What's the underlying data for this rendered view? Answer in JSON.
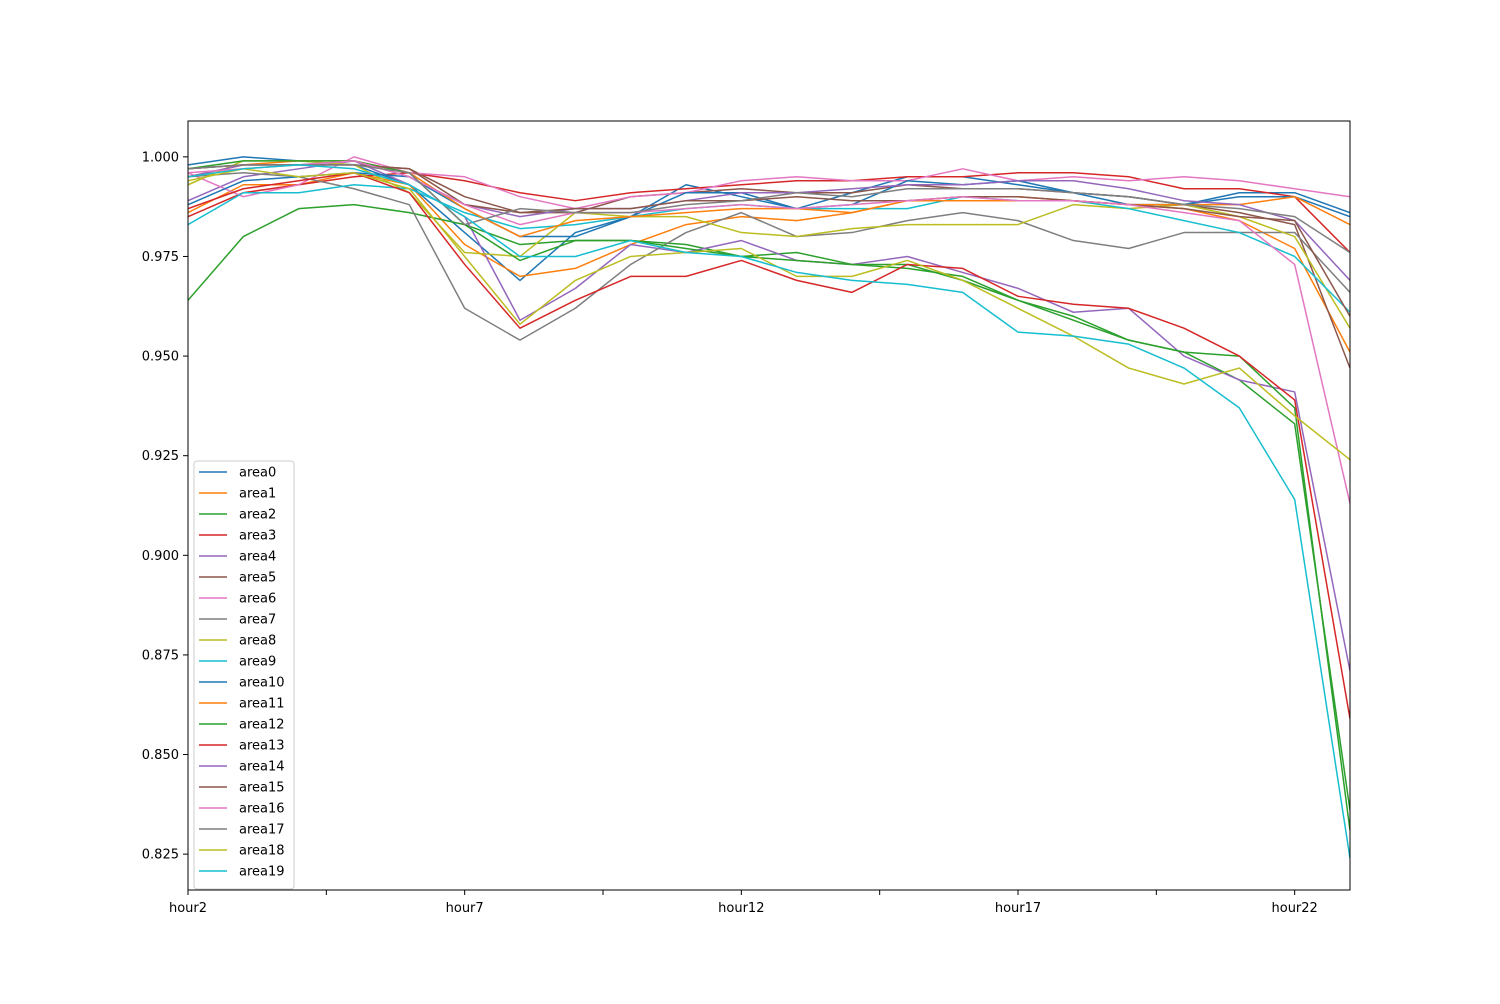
{
  "chart_data": {
    "type": "line",
    "title": "",
    "xlabel": "",
    "ylabel": "",
    "categories": [
      "hour2",
      "hour3",
      "hour4",
      "hour5",
      "hour6",
      "hour7",
      "hour8",
      "hour9",
      "hour10",
      "hour11",
      "hour12",
      "hour13",
      "hour14",
      "hour15",
      "hour16",
      "hour17",
      "hour18",
      "hour19",
      "hour20",
      "hour21",
      "hour22",
      "hour23"
    ],
    "x_tick_labels": [
      "hour2",
      "",
      "hour7",
      "",
      "hour12",
      "",
      "hour17",
      "",
      "hour22"
    ],
    "x_tick_indices": [
      0,
      2.5,
      5,
      7.5,
      10,
      12.5,
      15,
      17.5,
      20
    ],
    "ylim": [
      0.816,
      1.009
    ],
    "yticks": [
      0.825,
      0.85,
      0.875,
      0.9,
      0.925,
      0.95,
      0.975,
      1.0
    ],
    "ytick_labels": [
      "0.825",
      "0.850",
      "0.875",
      "0.900",
      "0.925",
      "0.950",
      "0.975",
      "1.000"
    ],
    "grid": false,
    "legend_position": "lower-left",
    "series": [
      {
        "name": "area0",
        "color": "#1f77b4",
        "values": [
          0.998,
          1.0,
          0.999,
          0.998,
          0.993,
          0.981,
          0.969,
          0.981,
          0.985,
          0.993,
          0.99,
          0.987,
          0.991,
          0.995,
          0.995,
          0.993,
          0.991,
          0.99,
          0.988,
          0.991,
          0.991,
          0.986
        ]
      },
      {
        "name": "area1",
        "color": "#ff7f0e",
        "values": [
          0.986,
          0.993,
          0.993,
          0.996,
          0.993,
          0.978,
          0.97,
          0.972,
          0.978,
          0.983,
          0.985,
          0.984,
          0.986,
          0.989,
          0.99,
          0.99,
          0.989,
          0.988,
          0.987,
          0.984,
          0.977,
          0.951
        ]
      },
      {
        "name": "area2",
        "color": "#2ca02c",
        "values": [
          0.964,
          0.98,
          0.987,
          0.988,
          0.986,
          0.983,
          0.978,
          0.979,
          0.979,
          0.978,
          0.975,
          0.976,
          0.973,
          0.972,
          0.97,
          0.964,
          0.959,
          0.954,
          0.951,
          0.944,
          0.933,
          0.836
        ]
      },
      {
        "name": "area3",
        "color": "#d62728",
        "values": [
          0.985,
          0.991,
          0.993,
          0.995,
          0.996,
          0.994,
          0.991,
          0.989,
          0.991,
          0.992,
          0.993,
          0.994,
          0.994,
          0.995,
          0.995,
          0.996,
          0.996,
          0.995,
          0.992,
          0.992,
          0.99,
          0.976
        ]
      },
      {
        "name": "area4",
        "color": "#9467bd",
        "values": [
          0.989,
          0.995,
          0.997,
          0.999,
          0.993,
          0.985,
          0.959,
          0.967,
          0.978,
          0.976,
          0.979,
          0.974,
          0.973,
          0.975,
          0.971,
          0.967,
          0.961,
          0.962,
          0.95,
          0.944,
          0.941,
          0.871
        ]
      },
      {
        "name": "area5",
        "color": "#8c564b",
        "values": [
          0.997,
          0.998,
          0.998,
          0.998,
          0.997,
          0.99,
          0.986,
          0.986,
          0.99,
          0.991,
          0.992,
          0.991,
          0.991,
          0.993,
          0.992,
          0.992,
          0.991,
          0.99,
          0.988,
          0.986,
          0.983,
          0.947
        ]
      },
      {
        "name": "area6",
        "color": "#e377c2",
        "values": [
          0.996,
          0.99,
          0.993,
          1.0,
          0.996,
          0.995,
          0.99,
          0.987,
          0.99,
          0.991,
          0.994,
          0.995,
          0.994,
          0.994,
          0.997,
          0.994,
          0.995,
          0.994,
          0.995,
          0.994,
          0.992,
          0.99
        ]
      },
      {
        "name": "area7",
        "color": "#7f7f7f",
        "values": [
          0.995,
          0.996,
          0.995,
          0.992,
          0.988,
          0.962,
          0.954,
          0.962,
          0.973,
          0.981,
          0.986,
          0.98,
          0.981,
          0.984,
          0.986,
          0.984,
          0.979,
          0.977,
          0.981,
          0.981,
          0.981,
          0.966
        ]
      },
      {
        "name": "area8",
        "color": "#bcbd22",
        "values": [
          0.993,
          0.999,
          0.999,
          0.998,
          0.991,
          0.976,
          0.975,
          0.986,
          0.985,
          0.985,
          0.981,
          0.98,
          0.982,
          0.983,
          0.983,
          0.983,
          0.988,
          0.987,
          0.988,
          0.985,
          0.98,
          0.957
        ]
      },
      {
        "name": "area9",
        "color": "#17becf",
        "values": [
          0.983,
          0.991,
          0.991,
          0.993,
          0.992,
          0.986,
          0.982,
          0.983,
          0.985,
          0.987,
          0.988,
          0.987,
          0.987,
          0.987,
          0.99,
          0.989,
          0.989,
          0.987,
          0.984,
          0.981,
          0.975,
          0.961
        ]
      },
      {
        "name": "area10",
        "color": "#1f77b4",
        "values": [
          0.988,
          0.994,
          0.995,
          0.996,
          0.995,
          0.987,
          0.98,
          0.98,
          0.985,
          0.991,
          0.991,
          0.987,
          0.988,
          0.994,
          0.993,
          0.994,
          0.991,
          0.988,
          0.988,
          0.99,
          0.99,
          0.985
        ]
      },
      {
        "name": "area11",
        "color": "#ff7f0e",
        "values": [
          0.995,
          0.998,
          0.999,
          0.999,
          0.996,
          0.987,
          0.98,
          0.984,
          0.985,
          0.986,
          0.987,
          0.987,
          0.986,
          0.989,
          0.989,
          0.989,
          0.989,
          0.988,
          0.988,
          0.988,
          0.99,
          0.983
        ]
      },
      {
        "name": "area12",
        "color": "#2ca02c",
        "values": [
          0.997,
          0.999,
          0.999,
          0.999,
          0.996,
          0.983,
          0.974,
          0.979,
          0.979,
          0.977,
          0.975,
          0.974,
          0.973,
          0.973,
          0.969,
          0.964,
          0.96,
          0.954,
          0.951,
          0.95,
          0.937,
          0.831
        ]
      },
      {
        "name": "area13",
        "color": "#d62728",
        "values": [
          0.987,
          0.992,
          0.994,
          0.996,
          0.991,
          0.973,
          0.957,
          0.964,
          0.97,
          0.97,
          0.974,
          0.969,
          0.966,
          0.973,
          0.972,
          0.965,
          0.963,
          0.962,
          0.957,
          0.95,
          0.939,
          0.859
        ]
      },
      {
        "name": "area14",
        "color": "#9467bd",
        "values": [
          0.995,
          0.998,
          0.998,
          0.999,
          0.995,
          0.988,
          0.985,
          0.987,
          0.987,
          0.989,
          0.991,
          0.991,
          0.992,
          0.993,
          0.993,
          0.994,
          0.994,
          0.992,
          0.989,
          0.988,
          0.984,
          0.969
        ]
      },
      {
        "name": "area15",
        "color": "#8c564b",
        "values": [
          0.997,
          0.998,
          0.998,
          0.998,
          0.997,
          0.988,
          0.986,
          0.987,
          0.987,
          0.989,
          0.989,
          0.99,
          0.989,
          0.989,
          0.99,
          0.99,
          0.989,
          0.988,
          0.987,
          0.985,
          0.984,
          0.96
        ]
      },
      {
        "name": "area16",
        "color": "#e377c2",
        "values": [
          0.996,
          0.997,
          0.998,
          0.999,
          0.995,
          0.988,
          0.983,
          0.986,
          0.986,
          0.987,
          0.988,
          0.987,
          0.988,
          0.989,
          0.99,
          0.989,
          0.989,
          0.988,
          0.986,
          0.984,
          0.973,
          0.913
        ]
      },
      {
        "name": "area17",
        "color": "#7f7f7f",
        "values": [
          0.997,
          0.998,
          0.998,
          0.998,
          0.996,
          0.983,
          0.987,
          0.986,
          0.986,
          0.988,
          0.989,
          0.991,
          0.99,
          0.992,
          0.992,
          0.992,
          0.991,
          0.99,
          0.988,
          0.987,
          0.985,
          0.976
        ]
      },
      {
        "name": "area18",
        "color": "#bcbd22",
        "values": [
          0.994,
          0.997,
          0.995,
          0.996,
          0.992,
          0.975,
          0.958,
          0.969,
          0.975,
          0.976,
          0.977,
          0.97,
          0.97,
          0.974,
          0.969,
          0.962,
          0.955,
          0.947,
          0.943,
          0.947,
          0.935,
          0.924
        ]
      },
      {
        "name": "area19",
        "color": "#17becf",
        "values": [
          0.995,
          0.997,
          0.998,
          0.997,
          0.993,
          0.985,
          0.975,
          0.975,
          0.979,
          0.976,
          0.975,
          0.971,
          0.969,
          0.968,
          0.966,
          0.956,
          0.955,
          0.953,
          0.947,
          0.937,
          0.914,
          0.824
        ]
      }
    ]
  }
}
